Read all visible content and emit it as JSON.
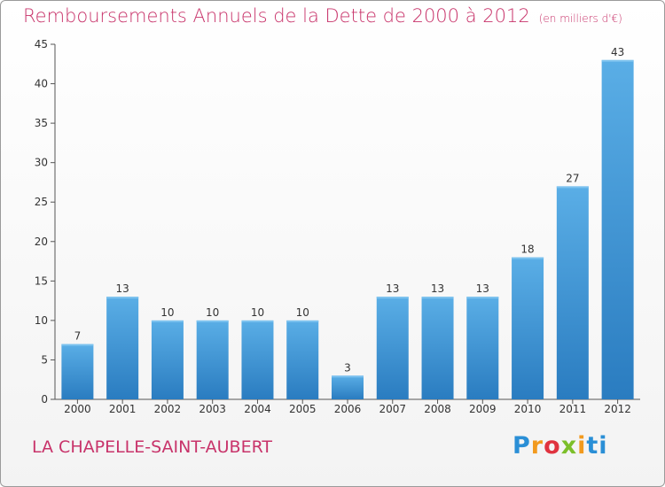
{
  "header": {
    "title": "Remboursements Annuels de la Dette de 2000 à 2012",
    "subtitle": "(en milliers d'€)"
  },
  "footer": {
    "commune": "LA CHAPELLE-SAINT-AUBERT",
    "logo_text": "Proxiti"
  },
  "colors": {
    "title": "#c8336a",
    "bar_light": "#5aaee6",
    "bar_dark": "#2a7cc0"
  },
  "chart_data": {
    "type": "bar",
    "categories": [
      "2000",
      "2001",
      "2002",
      "2003",
      "2004",
      "2005",
      "2006",
      "2007",
      "2008",
      "2009",
      "2010",
      "2011",
      "2012"
    ],
    "values": [
      7,
      13,
      10,
      10,
      10,
      10,
      3,
      13,
      13,
      13,
      18,
      27,
      43
    ],
    "title": "Remboursements Annuels de la Dette de 2000 à 2012",
    "subtitle": "(en milliers d'€)",
    "ylim": [
      0,
      45
    ],
    "yticks": [
      0,
      5,
      10,
      15,
      20,
      25,
      30,
      35,
      40,
      45
    ],
    "grid": false,
    "data_labels": true
  }
}
